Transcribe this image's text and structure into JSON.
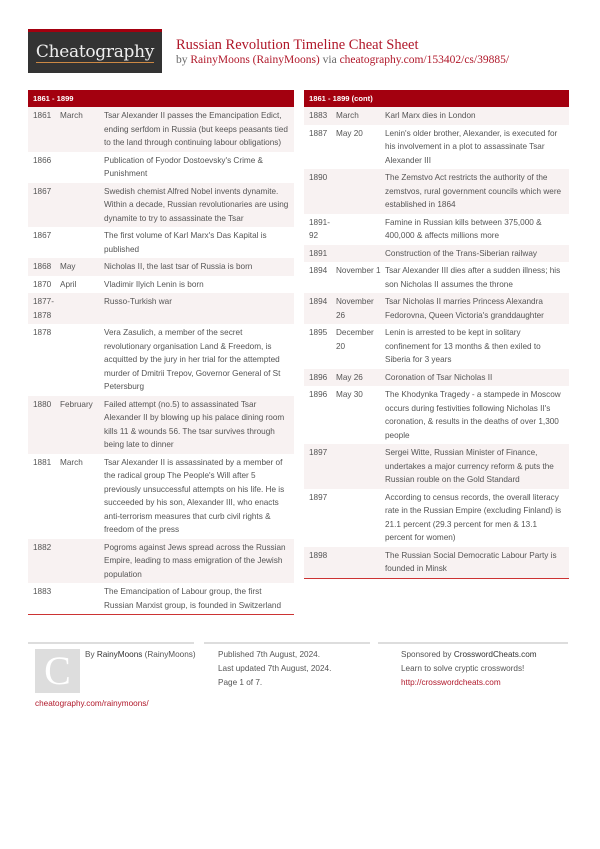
{
  "header": {
    "logo": "Cheatography",
    "title": "Russian Revolution Timeline Cheat Sheet",
    "by": "by",
    "author": "RainyMoons (RainyMoons)",
    "via": "via",
    "url": "cheatography.com/153402/cs/39885/"
  },
  "left": {
    "title": "1861 - 1899",
    "rows": [
      {
        "year": "1861",
        "month": "March",
        "text": "Tsar Alexander II passes the Emancipation Edict, ending serfdom in Russia (but keeps peasants tied to the land through continuing labour obligations)"
      },
      {
        "year": "1866",
        "month": "",
        "text": "Publication of Fyodor Dostoevsky's Crime & Punishment"
      },
      {
        "year": "1867",
        "month": "",
        "text": "Swedish chemist Alfred Nobel invents dynamite. Within a decade, Russian revolutionaries are using dynamite to try to assassinate the Tsar"
      },
      {
        "year": "1867",
        "month": "",
        "text": "The first volume of Karl Marx's Das Kapital is published"
      },
      {
        "year": "1868",
        "month": "May",
        "text": "Nicholas II, the last tsar of Russia is born"
      },
      {
        "year": "1870",
        "month": "April",
        "text": "Vladimir Ilyich Lenin is born"
      },
      {
        "year": "1877-1878",
        "month": "",
        "text": "Russo-Turkish war"
      },
      {
        "year": "1878",
        "month": "",
        "text": "Vera Zasulich, a member of the secret revolutionary organisation Land & Freedom, is acquitted by the jury in her trial for the attempted murder of Dmitrii Trepov, Governor General of St Petersburg"
      },
      {
        "year": "1880",
        "month": "February",
        "text": "Failed attempt (no.5) to assassinated Tsar Alexander II by blowing up his palace dining room kills 11 & wounds 56. The tsar survives through being late to dinner"
      },
      {
        "year": "1881",
        "month": "March",
        "text": "Tsar Alexander II is assassinated by a member of the radical group The People's Will after 5 previously unsuccessful attempts on his life. He is succeeded by his son, Alexander III, who enacts anti-terrorism measures that curb civil rights & freedom of the press"
      },
      {
        "year": "1882",
        "month": "",
        "text": "Pogroms against Jews spread across the Russian Empire, leading to mass emigration of the Jewish population"
      },
      {
        "year": "1883",
        "month": "",
        "text": "The Emancipation of Labour group, the first Russian Marxist group, is founded in Switzerland"
      }
    ]
  },
  "right": {
    "title": "1861 - 1899 (cont)",
    "rows": [
      {
        "year": "1883",
        "month": "March",
        "text": "Karl Marx dies in London"
      },
      {
        "year": "1887",
        "month": "May 20",
        "text": "Lenin's older brother, Alexander, is executed for his involvement in a plot to assassinate Tsar Alexander III"
      },
      {
        "year": "1890",
        "month": "",
        "text": "The Zemstvo Act restricts the authority of the zemstvos, rural government councils which were established in 1864"
      },
      {
        "year": "1891-92",
        "month": "",
        "text": "Famine in Russian kills between 375,000 & 400,000 & affects millions more"
      },
      {
        "year": "1891",
        "month": "",
        "text": "Construction of the Trans-Siberian railway"
      },
      {
        "year": "1894",
        "month": "November 1",
        "text": "Tsar Alexander III dies after a sudden illness; his son Nicholas II assumes the throne"
      },
      {
        "year": "1894",
        "month": "November 26",
        "text": "Tsar Nicholas II marries Princess Alexandra Fedorovna, Queen Victoria's granddaughter"
      },
      {
        "year": "1895",
        "month": "December 20",
        "text": "Lenin is arrested to be kept in solitary confinement for 13 months & then exiled to Siberia for 3 years"
      },
      {
        "year": "1896",
        "month": "May 26",
        "text": "Coronation of Tsar Nicholas II"
      },
      {
        "year": "1896",
        "month": "May 30",
        "text": "The Khodynka Tragedy - a stampede in Moscow occurs during festivities following Nicholas II's coronation, & results in the deaths of over 1,300 people"
      },
      {
        "year": "1897",
        "month": "",
        "text": "Sergei Witte, Russian Minister of Finance, undertakes a major currency reform & puts the Russian rouble on the Gold Standard"
      },
      {
        "year": "1897",
        "month": "",
        "text": "According to census records, the overall literacy rate in the Russian Empire (excluding Finland) is 21.1 percent (29.3 percent for men & 13.1 percent for women)"
      },
      {
        "year": "1898",
        "month": "",
        "text": "The Russian Social Democratic Labour Party is founded in Minsk"
      }
    ]
  },
  "footer": {
    "avatar_letter": "C",
    "by": "By",
    "author_name": "RainyMoons",
    "author_handle": "(RainyMoons)",
    "profile_url": "cheatography.com/rainymoons/",
    "published": "Published 7th August, 2024.",
    "updated": "Last updated 7th August, 2024.",
    "page": "Page 1 of 7.",
    "sponsored_by": "Sponsored by",
    "sponsor": "CrosswordCheats.com",
    "sponsor_tagline": "Learn to solve cryptic crosswords!",
    "sponsor_url": "http://crosswordcheats.com"
  },
  "colors": {
    "accent": "#a3000f",
    "link": "#b0182a",
    "row_alt": "#f8f2f2"
  }
}
